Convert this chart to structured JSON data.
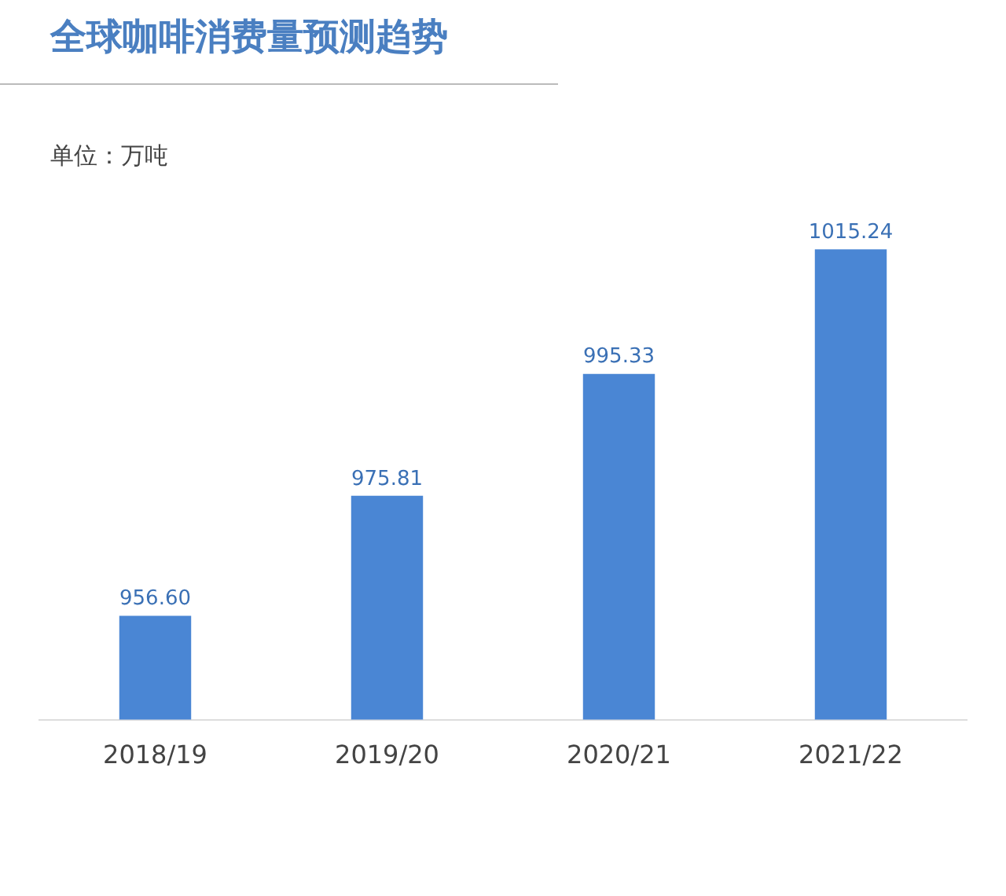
{
  "chart_data": {
    "type": "bar",
    "title": "全球咖啡消费量预测趋势",
    "subtitle": "单位：万吨",
    "categories": [
      "2018/19",
      "2019/20",
      "2020/21",
      "2021/22"
    ],
    "values": [
      956.6,
      975.81,
      995.33,
      1015.24
    ],
    "value_labels": [
      "956.60",
      "975.81",
      "995.33",
      "1015.24"
    ],
    "color": "#4a86d4",
    "tick_labels": "x",
    "grid": false,
    "legend": false
  }
}
